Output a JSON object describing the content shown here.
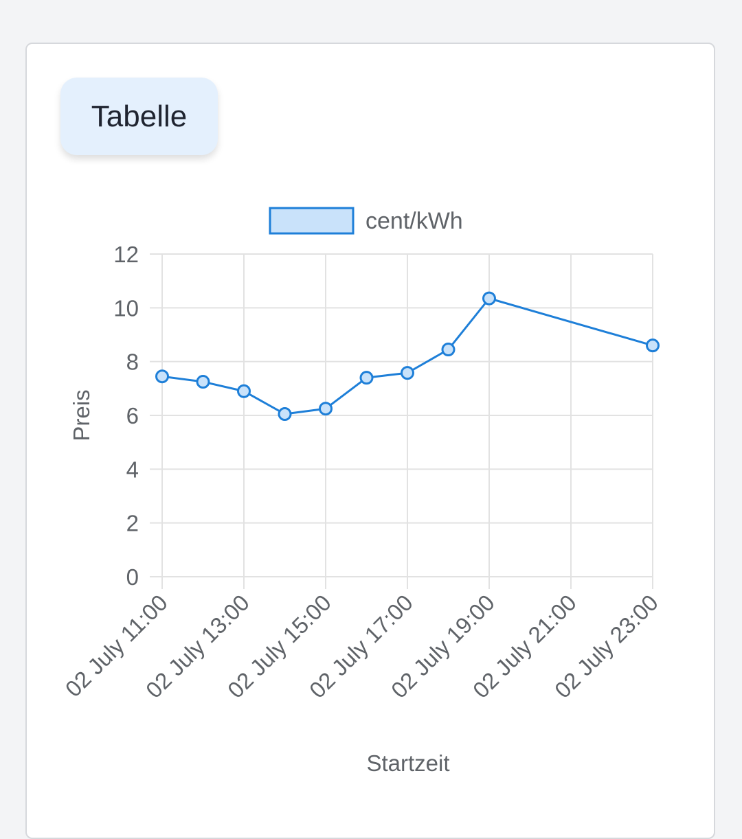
{
  "header": {
    "tab_label": "Tabelle"
  },
  "colors": {
    "line": "#1e7fd8",
    "point_fill": "#c9e2fa",
    "legend_fill": "#c9e2fa",
    "grid": "#e2e2e2",
    "text": "#5f6368"
  },
  "chart_data": {
    "type": "line",
    "legend": [
      "cent/kWh"
    ],
    "legend_position": "top-center",
    "xlabel": "Startzeit",
    "ylabel": "Preis",
    "ylim": [
      0,
      12
    ],
    "y_ticks": [
      "0",
      "2",
      "4",
      "6",
      "8",
      "10",
      "12"
    ],
    "x_ticks": [
      "02 July 11:00",
      "02 July 13:00",
      "02 July 15:00",
      "02 July 17:00",
      "02 July 19:00",
      "02 July 21:00",
      "02 July 23:00"
    ],
    "x_range_hours": [
      11,
      23
    ],
    "grid": true,
    "series": [
      {
        "name": "cent/kWh",
        "points": [
          {
            "x": "02 July 11:00",
            "y": 7.45
          },
          {
            "x": "02 July 12:00",
            "y": 7.25
          },
          {
            "x": "02 July 13:00",
            "y": 6.9
          },
          {
            "x": "02 July 14:00",
            "y": 6.05
          },
          {
            "x": "02 July 15:00",
            "y": 6.25
          },
          {
            "x": "02 July 16:00",
            "y": 7.4
          },
          {
            "x": "02 July 17:00",
            "y": 7.58
          },
          {
            "x": "02 July 18:00",
            "y": 8.45
          },
          {
            "x": "02 July 19:00",
            "y": 10.35
          },
          {
            "x": "02 July 23:00",
            "y": 8.6
          }
        ]
      }
    ]
  }
}
